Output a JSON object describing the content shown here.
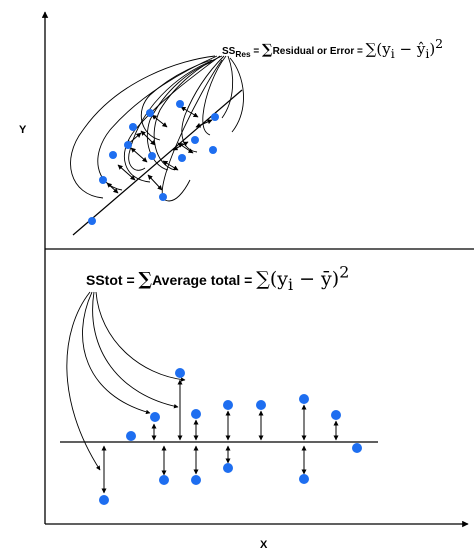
{
  "axes": {
    "y_label": "Y",
    "x_label": "X"
  },
  "top_panel": {
    "lhs": "SS",
    "lhs_sub": "Res",
    "equals": " = ",
    "sigma": "∑",
    "text": "Residual or Error = ",
    "formula_sum": "∑",
    "formula_body": "(y",
    "formula_sub_i": "i",
    "formula_minus": " − ",
    "formula_yhat": "ŷ",
    "formula_sub_i2": "i",
    "formula_close": ")",
    "formula_exp": "2"
  },
  "bottom_panel": {
    "lhs": "SStot",
    "equals": " = ",
    "sigma": "∑",
    "text": "Average total = ",
    "formula_sum": "∑",
    "formula_body": "(y",
    "formula_sub_i": "i",
    "formula_minus": " − ",
    "formula_ybar": "ȳ",
    "formula_close": ")",
    "formula_exp": "2"
  },
  "colors": {
    "point": "#1e6ef0",
    "line": "#000000"
  },
  "icons": [
    "double-arrow-icon",
    "curved-arrow-icon"
  ]
}
